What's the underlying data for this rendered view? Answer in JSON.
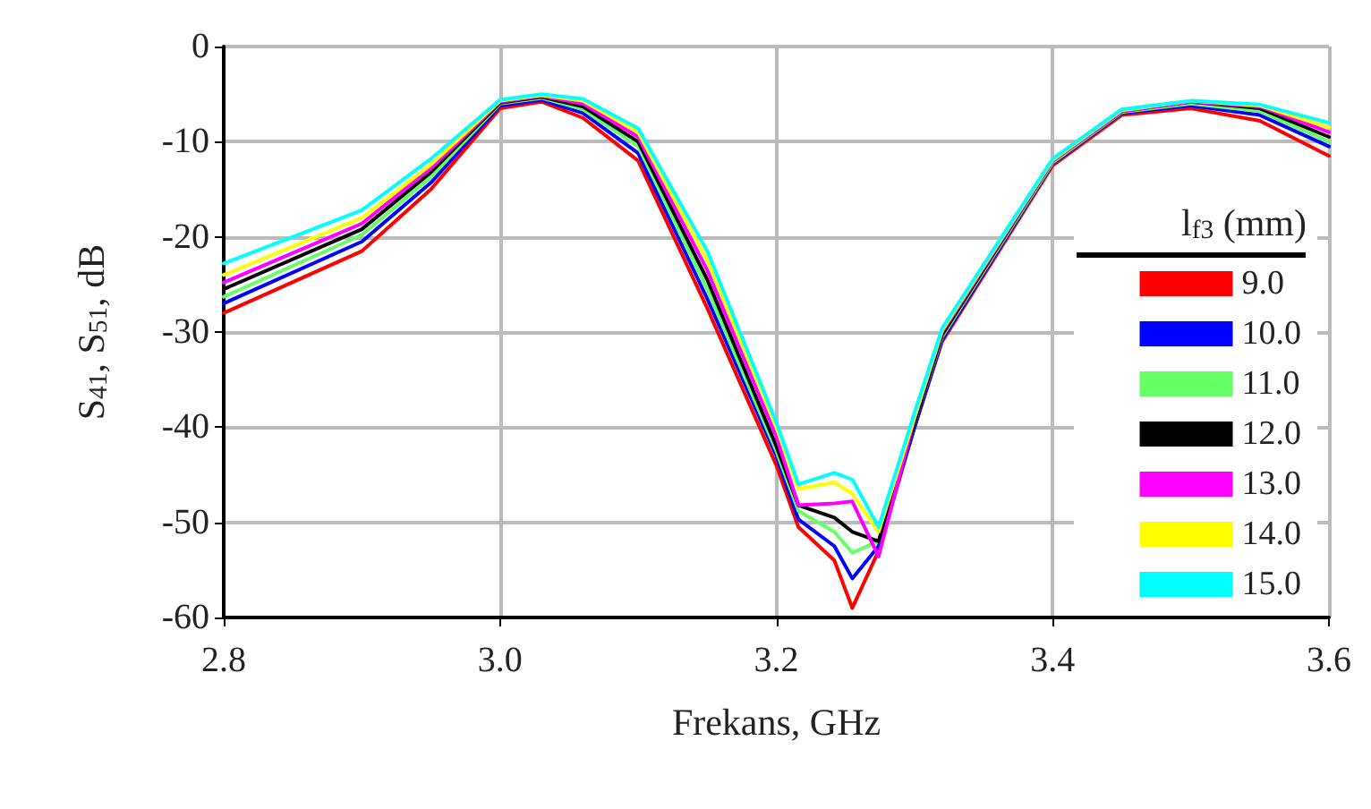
{
  "chart_data": {
    "type": "line",
    "xlabel": "Frekans, GHz",
    "ylabel": "S$_{41}$, S$_{51}$, dB",
    "legend_title": "l$_{f3}$ (mm)",
    "legend": "right",
    "grid": true,
    "line_style": "solid",
    "marker": "none",
    "xlim": [
      2.8,
      3.6
    ],
    "xticks": [
      2.8,
      {
        "value": 3,
        "label": "3.0"
      },
      3.2,
      3.4,
      3.6
    ],
    "ylim": [
      -60,
      0
    ],
    "yticks": [
      -60,
      -50,
      -40,
      -30,
      -20,
      -10,
      0
    ],
    "x": [
      2.8,
      2.9,
      2.95,
      3.0,
      3.03,
      3.06,
      3.1,
      3.15,
      3.2,
      3.216,
      3.242,
      3.255,
      3.274,
      3.3,
      3.32,
      3.4,
      3.45,
      3.5,
      3.55,
      3.6
    ],
    "series": [
      {
        "name": "9.0",
        "color": "#ff0000",
        "values": [
          -28,
          -21.5,
          -15,
          -6.5,
          -5.8,
          -7.5,
          -12,
          -27.5,
          -44,
          -50.5,
          -54,
          -59,
          -53,
          -40,
          -31,
          -12.5,
          -7.2,
          -6.5,
          -7.8,
          -11.5
        ]
      },
      {
        "name": "10.0",
        "color": "#0000ff",
        "values": [
          -27,
          -20.5,
          -14.3,
          -6.2,
          -5.6,
          -7,
          -11.2,
          -26.5,
          -43,
          -49.7,
          -52.5,
          -55.9,
          -52.5,
          -40,
          -30.8,
          -12.3,
          -7,
          -6.2,
          -7.2,
          -10.5
        ]
      },
      {
        "name": "11.0",
        "color": "#66ff66",
        "values": [
          -26.3,
          -19.8,
          -13.7,
          -6,
          -5.4,
          -6.6,
          -10.5,
          -25.5,
          -42.5,
          -48.8,
          -51,
          -53.2,
          -52,
          -39.5,
          -30.5,
          -12.2,
          -6.9,
          -6,
          -6.8,
          -10
        ]
      },
      {
        "name": "12.0",
        "color": "#000000",
        "values": [
          -25.5,
          -19.2,
          -13.2,
          -5.9,
          -5.3,
          -6.3,
          -10,
          -24.5,
          -42,
          -48.2,
          -49.5,
          -51,
          -52,
          -39.5,
          -30.3,
          -12,
          -6.8,
          -5.8,
          -6.5,
          -9.5
        ]
      },
      {
        "name": "13.0",
        "color": "#ff00ff",
        "values": [
          -24.8,
          -18.6,
          -12.8,
          -5.8,
          -5.2,
          -6,
          -9.5,
          -23.5,
          -41,
          -48.2,
          -48,
          -47.8,
          -53.6,
          -39,
          -30,
          -12,
          -6.8,
          -5.8,
          -6.3,
          -9
        ]
      },
      {
        "name": "14.0",
        "color": "#ffff00",
        "values": [
          -24,
          -18,
          -12.4,
          -5.7,
          -5.1,
          -5.7,
          -9,
          -22.5,
          -40,
          -46.5,
          -45.8,
          -47,
          -51,
          -39,
          -29.8,
          -11.9,
          -6.7,
          -5.7,
          -6.2,
          -8.5
        ]
      },
      {
        "name": "15.0",
        "color": "#00ffff",
        "values": [
          -22.8,
          -17.2,
          -11.8,
          -5.6,
          -5,
          -5.5,
          -8.6,
          -21.5,
          -39.5,
          -46,
          -44.8,
          -45.5,
          -50.5,
          -38.5,
          -29.6,
          -11.8,
          -6.6,
          -5.7,
          -6.1,
          -8
        ]
      }
    ]
  }
}
